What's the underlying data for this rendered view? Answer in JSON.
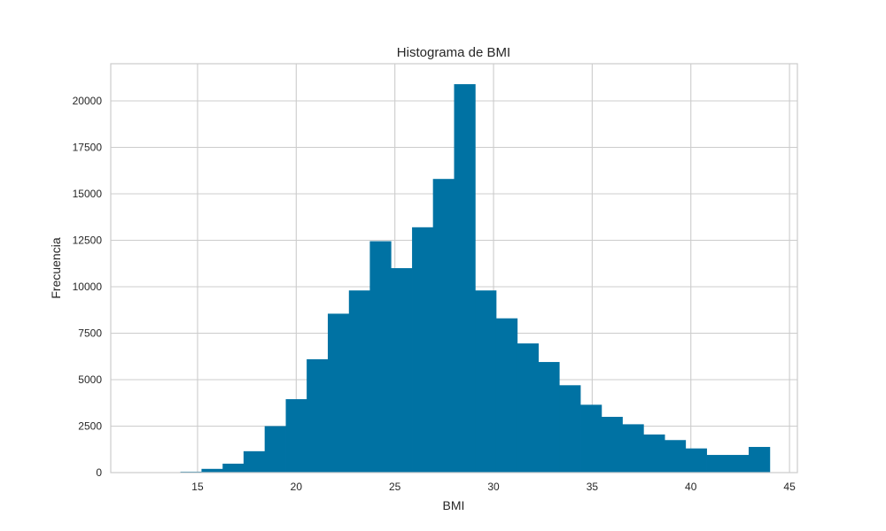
{
  "chart_data": {
    "type": "bar",
    "subtype": "histogram",
    "title": "Histograma de BMI",
    "xlabel": "BMI",
    "ylabel": "Frecuencia",
    "xlim": [
      10.6,
      45.4
    ],
    "ylim": [
      0,
      22000
    ],
    "grid": true,
    "legend": "none",
    "bar_color": "#0072a3",
    "x_ticks": [
      15,
      20,
      25,
      30,
      35,
      40,
      45
    ],
    "y_ticks": [
      0,
      2500,
      5000,
      7500,
      10000,
      12500,
      15000,
      17500,
      20000
    ],
    "bins": [
      {
        "start": 12.0,
        "end": 13.07,
        "value": 0
      },
      {
        "start": 13.07,
        "end": 14.13,
        "value": 10
      },
      {
        "start": 14.13,
        "end": 15.2,
        "value": 50
      },
      {
        "start": 15.2,
        "end": 16.27,
        "value": 200
      },
      {
        "start": 16.27,
        "end": 17.33,
        "value": 480
      },
      {
        "start": 17.33,
        "end": 18.4,
        "value": 1150
      },
      {
        "start": 18.4,
        "end": 19.47,
        "value": 2500
      },
      {
        "start": 19.47,
        "end": 20.53,
        "value": 3950
      },
      {
        "start": 20.53,
        "end": 21.6,
        "value": 6100
      },
      {
        "start": 21.6,
        "end": 22.67,
        "value": 8550
      },
      {
        "start": 22.67,
        "end": 23.73,
        "value": 9800
      },
      {
        "start": 23.73,
        "end": 24.8,
        "value": 12450
      },
      {
        "start": 24.8,
        "end": 25.87,
        "value": 11000
      },
      {
        "start": 25.87,
        "end": 26.93,
        "value": 13200
      },
      {
        "start": 26.93,
        "end": 28.0,
        "value": 15800
      },
      {
        "start": 28.0,
        "end": 29.07,
        "value": 20900
      },
      {
        "start": 29.07,
        "end": 30.13,
        "value": 9800
      },
      {
        "start": 30.13,
        "end": 31.2,
        "value": 8300
      },
      {
        "start": 31.2,
        "end": 32.27,
        "value": 6950
      },
      {
        "start": 32.27,
        "end": 33.33,
        "value": 5950
      },
      {
        "start": 33.33,
        "end": 34.4,
        "value": 4700
      },
      {
        "start": 34.4,
        "end": 35.47,
        "value": 3650
      },
      {
        "start": 35.47,
        "end": 36.53,
        "value": 3000
      },
      {
        "start": 36.53,
        "end": 37.6,
        "value": 2600
      },
      {
        "start": 37.6,
        "end": 38.67,
        "value": 2050
      },
      {
        "start": 38.67,
        "end": 39.73,
        "value": 1750
      },
      {
        "start": 39.73,
        "end": 40.8,
        "value": 1300
      },
      {
        "start": 40.8,
        "end": 41.87,
        "value": 950
      },
      {
        "start": 41.87,
        "end": 42.93,
        "value": 950
      },
      {
        "start": 42.93,
        "end": 44.0,
        "value": 1380
      }
    ]
  }
}
